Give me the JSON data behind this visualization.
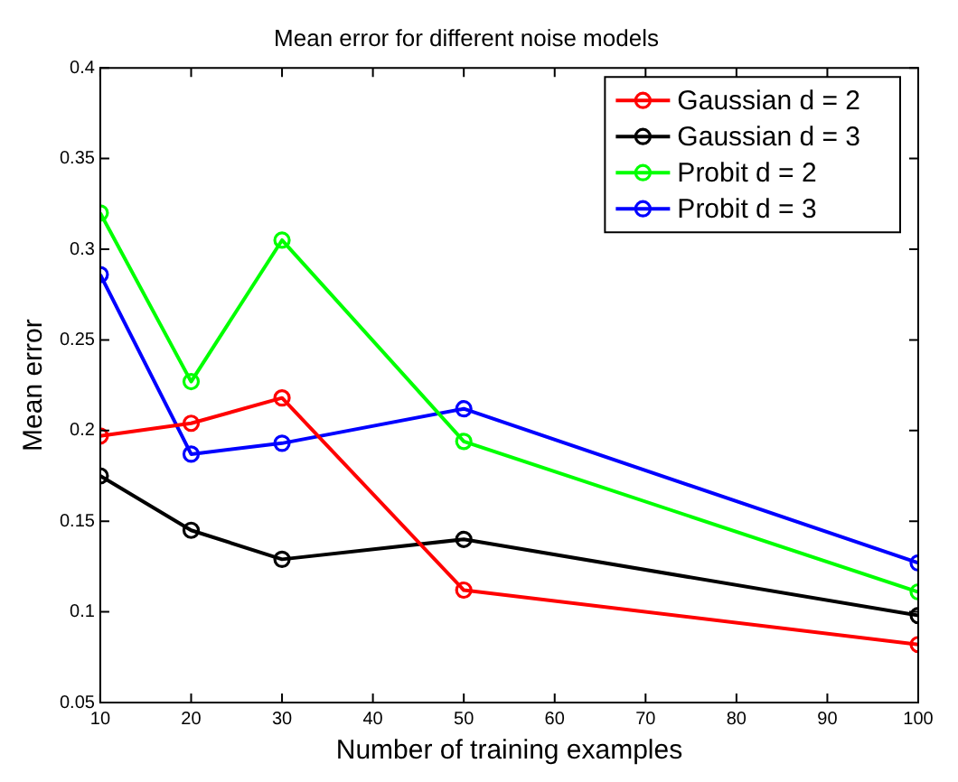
{
  "chart_data": {
    "type": "line",
    "title": "Mean error for different noise models",
    "xlabel": "Number of training examples",
    "ylabel": "Mean error",
    "x": [
      10,
      20,
      30,
      50,
      100
    ],
    "series": [
      {
        "name": "Gaussian d = 2",
        "color": "#ff0000",
        "values": [
          0.197,
          0.204,
          0.218,
          0.112,
          0.082
        ]
      },
      {
        "name": "Gaussian d = 3",
        "color": "#000000",
        "values": [
          0.175,
          0.145,
          0.129,
          0.14,
          0.098
        ]
      },
      {
        "name": "Probit d = 2",
        "color": "#00ff00",
        "values": [
          0.32,
          0.227,
          0.305,
          0.194,
          0.111
        ]
      },
      {
        "name": "Probit d = 3",
        "color": "#0000ff",
        "values": [
          0.286,
          0.187,
          0.193,
          0.212,
          0.127
        ]
      }
    ],
    "xlim": [
      10,
      100
    ],
    "xticks": [
      10,
      20,
      30,
      40,
      50,
      60,
      70,
      80,
      90,
      100
    ],
    "ylim": [
      0.05,
      0.4
    ],
    "yticks": [
      0.05,
      0.1,
      0.15,
      0.2,
      0.25,
      0.3,
      0.35,
      0.4
    ],
    "grid": false,
    "legend": "top right",
    "marker": "circle",
    "line_style": "solid"
  }
}
